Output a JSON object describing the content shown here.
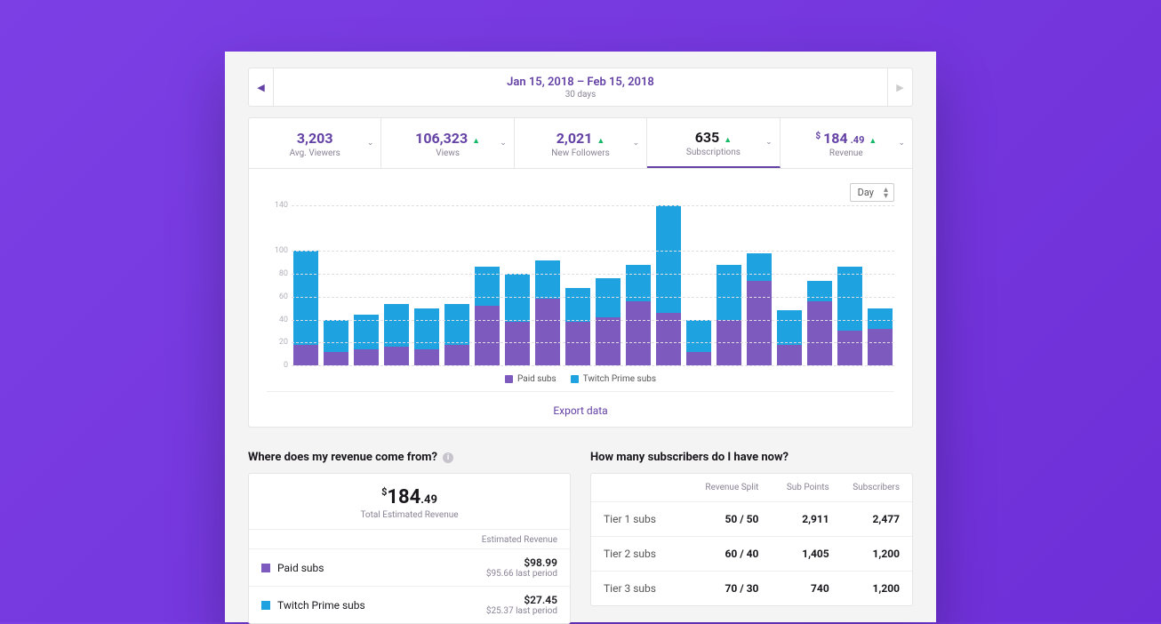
{
  "colors": {
    "purple": "#6441a5",
    "bar_paid": "#7d5bbe",
    "bar_prime": "#1fa3e0",
    "text_muted": "#898395",
    "trend_up": "#14b866"
  },
  "dateBar": {
    "range": "Jan 15, 2018 – Feb 15, 2018",
    "days": "30 days"
  },
  "metrics": [
    {
      "value": "3,203",
      "label": "Avg. Viewers",
      "trend": "none",
      "active": false,
      "dark": false
    },
    {
      "value": "106,323",
      "label": "Views",
      "trend": "up",
      "active": false,
      "dark": false
    },
    {
      "value": "2,021",
      "label": "New Followers",
      "trend": "up",
      "active": false,
      "dark": false
    },
    {
      "value": "635",
      "label": "Subscriptions",
      "trend": "up",
      "active": true,
      "dark": true
    },
    {
      "prefix": "$",
      "value": "184",
      "dec": ".49",
      "label": "Revenue",
      "trend": "up",
      "active": false,
      "dark": false
    }
  ],
  "chart": {
    "granularity": "Day",
    "y_max": 140,
    "y_ticks": [
      0,
      20,
      40,
      60,
      80,
      100,
      140
    ],
    "legend": [
      {
        "label": "Paid subs",
        "color": "#7d5bbe"
      },
      {
        "label": "Twitch Prime subs",
        "color": "#1fa3e0"
      }
    ],
    "bars": [
      {
        "paid": 18,
        "prime": 82
      },
      {
        "paid": 12,
        "prime": 28
      },
      {
        "paid": 14,
        "prime": 30
      },
      {
        "paid": 16,
        "prime": 38
      },
      {
        "paid": 14,
        "prime": 36
      },
      {
        "paid": 18,
        "prime": 36
      },
      {
        "paid": 52,
        "prime": 34
      },
      {
        "paid": 38,
        "prime": 42
      },
      {
        "paid": 58,
        "prime": 34
      },
      {
        "paid": 38,
        "prime": 30
      },
      {
        "paid": 42,
        "prime": 34
      },
      {
        "paid": 56,
        "prime": 32
      },
      {
        "paid": 46,
        "prime": 94
      },
      {
        "paid": 12,
        "prime": 28
      },
      {
        "paid": 40,
        "prime": 48
      },
      {
        "paid": 74,
        "prime": 24
      },
      {
        "paid": 18,
        "prime": 30
      },
      {
        "paid": 56,
        "prime": 18
      },
      {
        "paid": 30,
        "prime": 56
      },
      {
        "paid": 32,
        "prime": 18
      }
    ]
  },
  "export_label": "Export data",
  "revenue": {
    "title": "Where does my revenue come from?",
    "total_prefix": "$",
    "total_int": "184",
    "total_dec": ".49",
    "total_label": "Total Estimated Revenue",
    "col_header": "Estimated Revenue",
    "rows": [
      {
        "color": "#7d5bbe",
        "name": "Paid subs",
        "amount": "$98.99",
        "last": "$95.66 last period"
      },
      {
        "color": "#1fa3e0",
        "name": "Twitch Prime subs",
        "amount": "$27.45",
        "last": "$25.37 last period"
      }
    ]
  },
  "subscribers": {
    "title": "How many subscribers do I have now?",
    "columns": [
      "Revenue Split",
      "Sub Points",
      "Subscribers"
    ],
    "rows": [
      {
        "name": "Tier 1 subs",
        "split": "50 / 50",
        "points": "2,911",
        "subs": "2,477"
      },
      {
        "name": "Tier 2 subs",
        "split": "60 / 40",
        "points": "1,405",
        "subs": "1,200"
      },
      {
        "name": "Tier 3 subs",
        "split": "70 / 30",
        "points": "740",
        "subs": "1,200"
      }
    ]
  }
}
